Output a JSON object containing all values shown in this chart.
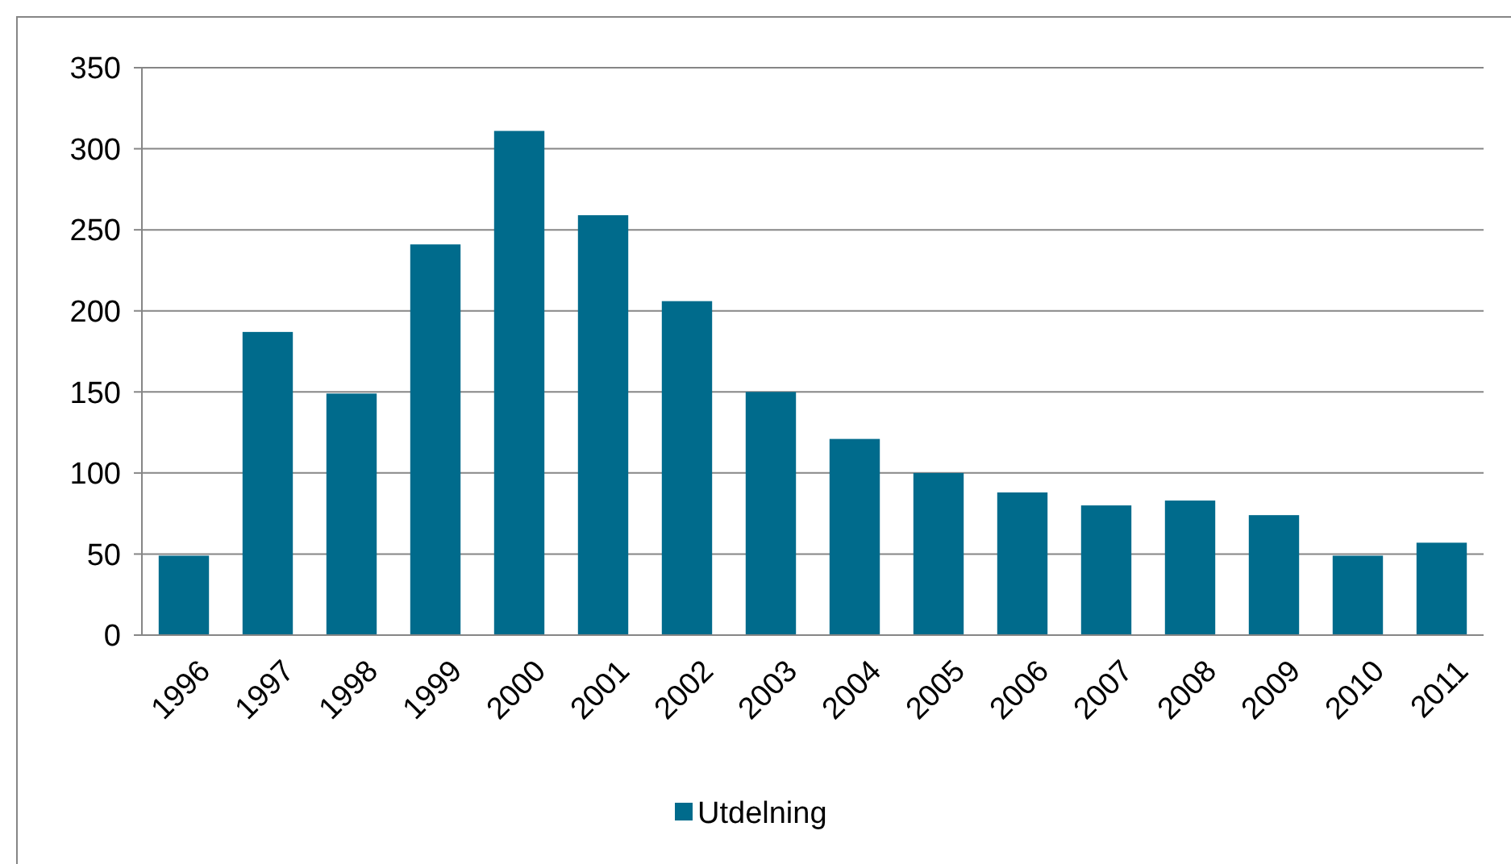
{
  "chart_data": {
    "type": "bar",
    "categories": [
      "1996",
      "1997",
      "1998",
      "1999",
      "2000",
      "2001",
      "2002",
      "2003",
      "2004",
      "2005",
      "2006",
      "2007",
      "2008",
      "2009",
      "2010",
      "2011"
    ],
    "series": [
      {
        "name": "Utdelning",
        "color": "#006b8c",
        "values": [
          49,
          187,
          149,
          241,
          311,
          259,
          206,
          150,
          121,
          100,
          88,
          80,
          83,
          74,
          49,
          57
        ]
      }
    ],
    "ylim": [
      0,
      350
    ],
    "yticks": [
      0,
      50,
      100,
      150,
      200,
      250,
      300,
      350
    ],
    "grid": "y",
    "legend": "bottom"
  }
}
